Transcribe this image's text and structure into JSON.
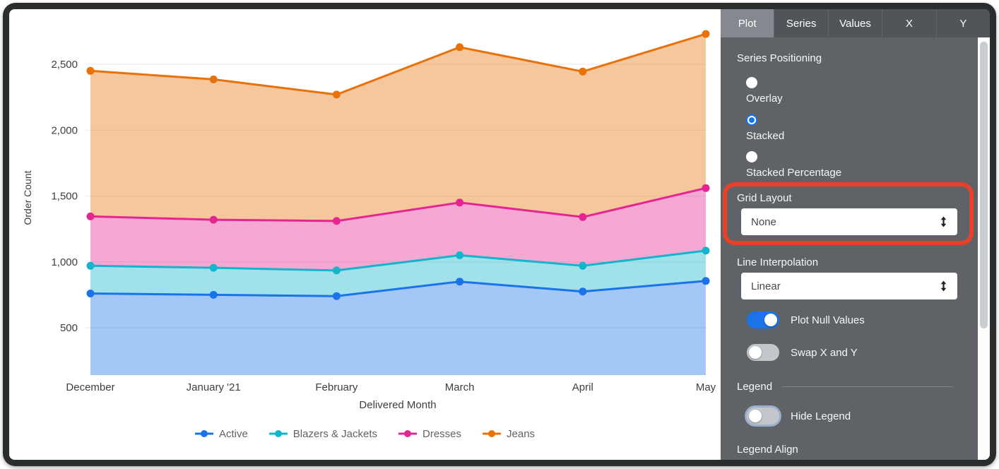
{
  "chart_data": {
    "type": "area",
    "stacked": true,
    "title": "",
    "xlabel": "Delivered Month",
    "ylabel": "Order Count",
    "categories": [
      "December",
      "January '21",
      "February",
      "March",
      "April",
      "May"
    ],
    "series": [
      {
        "name": "Active",
        "color": "#1a73e8",
        "values": [
          760,
          750,
          740,
          850,
          775,
          855
        ],
        "cumulative": [
          760,
          750,
          740,
          850,
          775,
          855
        ]
      },
      {
        "name": "Blazers & Jackets",
        "color": "#12b5cb",
        "values": [
          210,
          205,
          195,
          200,
          195,
          230
        ],
        "cumulative": [
          970,
          955,
          935,
          1050,
          970,
          1085
        ]
      },
      {
        "name": "Dresses",
        "color": "#e52592",
        "values": [
          375,
          365,
          375,
          400,
          370,
          475
        ],
        "cumulative": [
          1345,
          1320,
          1310,
          1450,
          1340,
          1560
        ]
      },
      {
        "name": "Jeans",
        "color": "#e8710a",
        "values": [
          1105,
          1065,
          960,
          1180,
          1105,
          1170
        ],
        "cumulative": [
          2450,
          2385,
          2270,
          2630,
          2445,
          2730
        ]
      }
    ],
    "y_ticks": [
      "500",
      "1,000",
      "1,500",
      "2,000",
      "2,500"
    ],
    "y_tick_values": [
      500,
      1000,
      1500,
      2000,
      2500
    ],
    "ylim": [
      140,
      2840
    ],
    "grid": true,
    "legend_position": "bottom"
  },
  "panel": {
    "tabs": [
      {
        "label": "Plot",
        "active": true
      },
      {
        "label": "Series",
        "active": false
      },
      {
        "label": "Values",
        "active": false
      },
      {
        "label": "X",
        "active": false
      },
      {
        "label": "Y",
        "active": false
      }
    ],
    "series_positioning": {
      "label": "Series Positioning",
      "options": [
        {
          "label": "Overlay",
          "selected": false
        },
        {
          "label": "Stacked",
          "selected": true
        },
        {
          "label": "Stacked Percentage",
          "selected": false
        }
      ]
    },
    "grid_layout": {
      "label": "Grid Layout",
      "value": "None"
    },
    "line_interpolation": {
      "label": "Line Interpolation",
      "value": "Linear"
    },
    "toggles": [
      {
        "label": "Plot Null Values",
        "on": true
      },
      {
        "label": "Swap X and Y",
        "on": false
      }
    ],
    "legend_section": {
      "label": "Legend"
    },
    "hide_legend": {
      "label": "Hide Legend",
      "on": false
    },
    "legend_align": {
      "label": "Legend Align"
    },
    "accent_color": "#1a73e8"
  },
  "annotation": {
    "shape": "highlight-box",
    "color": "#e8402b",
    "target": "Grid Layout"
  }
}
